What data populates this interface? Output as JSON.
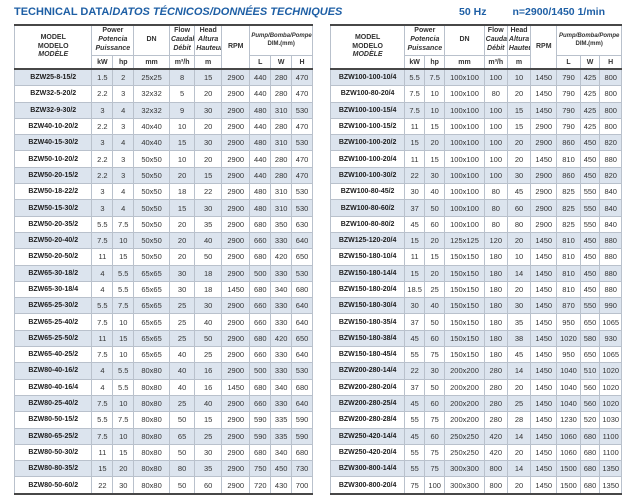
{
  "header": {
    "title_en": "TECHNICAL DATA/",
    "title_intl": "DATOS TÉCNICOS/DONNÉES TECHNIQUES",
    "frequency": "50 Hz",
    "speed": "n=2900/1450 1/min"
  },
  "columns": {
    "model": [
      "MODEL",
      "MODELO",
      "MODÈLE"
    ],
    "power": [
      "Power",
      "Potencia",
      "Puissance"
    ],
    "power_units": [
      "kW",
      "hp"
    ],
    "dn": "DN",
    "dn_unit": "mm",
    "flow": [
      "Flow",
      "Caudal",
      "Débit"
    ],
    "flow_unit": "m³/h",
    "head": [
      "Head",
      "Altura",
      "Hauteur"
    ],
    "head_unit": "m",
    "rpm": "RPM",
    "dim": "Pump/Bomba/Pompe",
    "dim_sub": "DIM.(mm)",
    "dim_units": [
      "L",
      "W",
      "H"
    ]
  },
  "colors": {
    "accent_blue": "#1e5fa5",
    "row_shade": "#dce4ee",
    "border_dark": "#474747",
    "border_light": "#b9c1cc"
  },
  "chart_data": {
    "type": "table",
    "title": "TECHNICAL DATA/DATOS TÉCNICOS/DONNÉES TECHNIQUES",
    "note": "50 Hz  n=2900/1450 1/min",
    "columns": [
      "MODEL",
      "Power kW",
      "Power hp",
      "DN mm",
      "Flow m³/h",
      "Head m",
      "RPM",
      "L mm",
      "W mm",
      "H mm"
    ]
  },
  "table_left": {
    "rows": [
      [
        "BZW25-8-15/2",
        "1.5",
        "2",
        "25x25",
        "8",
        "15",
        "2900",
        "440",
        "280",
        "470"
      ],
      [
        "BZW32-5-20/2",
        "2.2",
        "3",
        "32x32",
        "5",
        "20",
        "2900",
        "440",
        "280",
        "470"
      ],
      [
        "BZW32-9-30/2",
        "3",
        "4",
        "32x32",
        "9",
        "30",
        "2900",
        "480",
        "310",
        "530"
      ],
      [
        "BZW40-10-20/2",
        "2.2",
        "3",
        "40x40",
        "10",
        "20",
        "2900",
        "440",
        "280",
        "470"
      ],
      [
        "BZW40-15-30/2",
        "3",
        "4",
        "40x40",
        "15",
        "30",
        "2900",
        "480",
        "310",
        "530"
      ],
      [
        "BZW50-10-20/2",
        "2.2",
        "3",
        "50x50",
        "10",
        "20",
        "2900",
        "440",
        "280",
        "470"
      ],
      [
        "BZW50-20-15/2",
        "2.2",
        "3",
        "50x50",
        "20",
        "15",
        "2900",
        "440",
        "280",
        "470"
      ],
      [
        "BZW50-18-22/2",
        "3",
        "4",
        "50x50",
        "18",
        "22",
        "2900",
        "480",
        "310",
        "530"
      ],
      [
        "BZW50-15-30/2",
        "3",
        "4",
        "50x50",
        "15",
        "30",
        "2900",
        "480",
        "310",
        "530"
      ],
      [
        "BZW50-20-35/2",
        "5.5",
        "7.5",
        "50x50",
        "20",
        "35",
        "2900",
        "680",
        "350",
        "630"
      ],
      [
        "BZW50-20-40/2",
        "7.5",
        "10",
        "50x50",
        "20",
        "40",
        "2900",
        "660",
        "330",
        "640"
      ],
      [
        "BZW50-20-50/2",
        "11",
        "15",
        "50x50",
        "20",
        "50",
        "2900",
        "680",
        "420",
        "650"
      ],
      [
        "BZW65-30-18/2",
        "4",
        "5.5",
        "65x65",
        "30",
        "18",
        "2900",
        "500",
        "330",
        "530"
      ],
      [
        "BZW65-30-18/4",
        "4",
        "5.5",
        "65x65",
        "30",
        "18",
        "1450",
        "680",
        "340",
        "680"
      ],
      [
        "BZW65-25-30/2",
        "5.5",
        "7.5",
        "65x65",
        "25",
        "30",
        "2900",
        "660",
        "330",
        "640"
      ],
      [
        "BZW65-25-40/2",
        "7.5",
        "10",
        "65x65",
        "25",
        "40",
        "2900",
        "660",
        "330",
        "640"
      ],
      [
        "BZW65-25-50/2",
        "11",
        "15",
        "65x65",
        "25",
        "50",
        "2900",
        "680",
        "420",
        "650"
      ],
      [
        "BZW65-40-25/2",
        "7.5",
        "10",
        "65x65",
        "40",
        "25",
        "2900",
        "660",
        "330",
        "640"
      ],
      [
        "BZW80-40-16/2",
        "4",
        "5.5",
        "80x80",
        "40",
        "16",
        "2900",
        "500",
        "330",
        "530"
      ],
      [
        "BZW80-40-16/4",
        "4",
        "5.5",
        "80x80",
        "40",
        "16",
        "1450",
        "680",
        "340",
        "680"
      ],
      [
        "BZW80-25-40/2",
        "7.5",
        "10",
        "80x80",
        "25",
        "40",
        "2900",
        "660",
        "330",
        "640"
      ],
      [
        "BZW80-50-15/2",
        "5.5",
        "7.5",
        "80x80",
        "50",
        "15",
        "2900",
        "590",
        "335",
        "590"
      ],
      [
        "BZW80-65-25/2",
        "7.5",
        "10",
        "80x80",
        "65",
        "25",
        "2900",
        "590",
        "335",
        "590"
      ],
      [
        "BZW80-50-30/2",
        "11",
        "15",
        "80x80",
        "50",
        "30",
        "2900",
        "680",
        "340",
        "680"
      ],
      [
        "BZW80-80-35/2",
        "15",
        "20",
        "80x80",
        "80",
        "35",
        "2900",
        "750",
        "450",
        "730"
      ],
      [
        "BZW80-50-60/2",
        "22",
        "30",
        "80x80",
        "50",
        "60",
        "2900",
        "720",
        "430",
        "700"
      ]
    ]
  },
  "table_right": {
    "rows": [
      [
        "BZW100-100-10/4",
        "5.5",
        "7.5",
        "100x100",
        "100",
        "10",
        "1450",
        "790",
        "425",
        "800"
      ],
      [
        "BZW100-80-20/4",
        "7.5",
        "10",
        "100x100",
        "80",
        "20",
        "1450",
        "790",
        "425",
        "800"
      ],
      [
        "BZW100-100-15/4",
        "7.5",
        "10",
        "100x100",
        "100",
        "15",
        "1450",
        "790",
        "425",
        "800"
      ],
      [
        "BZW100-100-15/2",
        "11",
        "15",
        "100x100",
        "100",
        "15",
        "2900",
        "790",
        "425",
        "800"
      ],
      [
        "BZW100-100-20/2",
        "15",
        "20",
        "100x100",
        "100",
        "20",
        "2900",
        "860",
        "450",
        "820"
      ],
      [
        "BZW100-100-20/4",
        "11",
        "15",
        "100x100",
        "100",
        "20",
        "1450",
        "810",
        "450",
        "880"
      ],
      [
        "BZW100-100-30/2",
        "22",
        "30",
        "100x100",
        "100",
        "30",
        "2900",
        "860",
        "450",
        "820"
      ],
      [
        "BZW100-80-45/2",
        "30",
        "40",
        "100x100",
        "80",
        "45",
        "2900",
        "825",
        "550",
        "840"
      ],
      [
        "BZW100-80-60/2",
        "37",
        "50",
        "100x100",
        "80",
        "60",
        "2900",
        "825",
        "550",
        "840"
      ],
      [
        "BZW100-80-80/2",
        "45",
        "60",
        "100x100",
        "80",
        "80",
        "2900",
        "825",
        "550",
        "840"
      ],
      [
        "BZW125-120-20/4",
        "15",
        "20",
        "125x125",
        "120",
        "20",
        "1450",
        "810",
        "450",
        "880"
      ],
      [
        "BZW150-180-10/4",
        "11",
        "15",
        "150x150",
        "180",
        "10",
        "1450",
        "810",
        "450",
        "880"
      ],
      [
        "BZW150-180-14/4",
        "15",
        "20",
        "150x150",
        "180",
        "14",
        "1450",
        "810",
        "450",
        "880"
      ],
      [
        "BZW150-180-20/4",
        "18.5",
        "25",
        "150x150",
        "180",
        "20",
        "1450",
        "810",
        "450",
        "880"
      ],
      [
        "BZW150-180-30/4",
        "30",
        "40",
        "150x150",
        "180",
        "30",
        "1450",
        "870",
        "550",
        "990"
      ],
      [
        "BZW150-180-35/4",
        "37",
        "50",
        "150x150",
        "180",
        "35",
        "1450",
        "950",
        "650",
        "1065"
      ],
      [
        "BZW150-180-38/4",
        "45",
        "60",
        "150x150",
        "180",
        "38",
        "1450",
        "1020",
        "580",
        "930"
      ],
      [
        "BZW150-180-45/4",
        "55",
        "75",
        "150x150",
        "180",
        "45",
        "1450",
        "950",
        "650",
        "1065"
      ],
      [
        "BZW200-280-14/4",
        "22",
        "30",
        "200x200",
        "280",
        "14",
        "1450",
        "1040",
        "510",
        "1020"
      ],
      [
        "BZW200-280-20/4",
        "37",
        "50",
        "200x200",
        "280",
        "20",
        "1450",
        "1040",
        "560",
        "1020"
      ],
      [
        "BZW200-280-25/4",
        "45",
        "60",
        "200x200",
        "280",
        "25",
        "1450",
        "1040",
        "560",
        "1020"
      ],
      [
        "BZW200-280-28/4",
        "55",
        "75",
        "200x200",
        "280",
        "28",
        "1450",
        "1230",
        "520",
        "1030"
      ],
      [
        "BZW250-420-14/4",
        "45",
        "60",
        "250x250",
        "420",
        "14",
        "1450",
        "1060",
        "680",
        "1100"
      ],
      [
        "BZW250-420-20/4",
        "55",
        "75",
        "250x250",
        "420",
        "20",
        "1450",
        "1060",
        "680",
        "1100"
      ],
      [
        "BZW300-800-14/4",
        "55",
        "75",
        "300x300",
        "800",
        "14",
        "1450",
        "1500",
        "680",
        "1350"
      ],
      [
        "BZW300-800-20/4",
        "75",
        "100",
        "300x300",
        "800",
        "20",
        "1450",
        "1500",
        "680",
        "1350"
      ]
    ]
  }
}
